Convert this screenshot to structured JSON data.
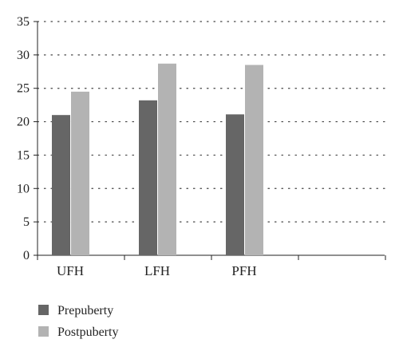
{
  "chart_data": {
    "type": "bar",
    "categories": [
      "UFH",
      "LFH",
      "PFH",
      ""
    ],
    "series": [
      {
        "name": "Prepuberty",
        "values": [
          21.0,
          23.2,
          21.1,
          null
        ],
        "color": "#666666"
      },
      {
        "name": "Postpuberty",
        "values": [
          24.5,
          28.7,
          28.5,
          null
        ],
        "color": "#b3b3b3"
      }
    ],
    "title": "",
    "xlabel": "",
    "ylabel": "",
    "ylim": [
      0,
      35
    ],
    "yticks": [
      0,
      5,
      10,
      15,
      20,
      25,
      30,
      35
    ],
    "grid": "horizontal-dotted",
    "legend_position": "bottom-left"
  }
}
